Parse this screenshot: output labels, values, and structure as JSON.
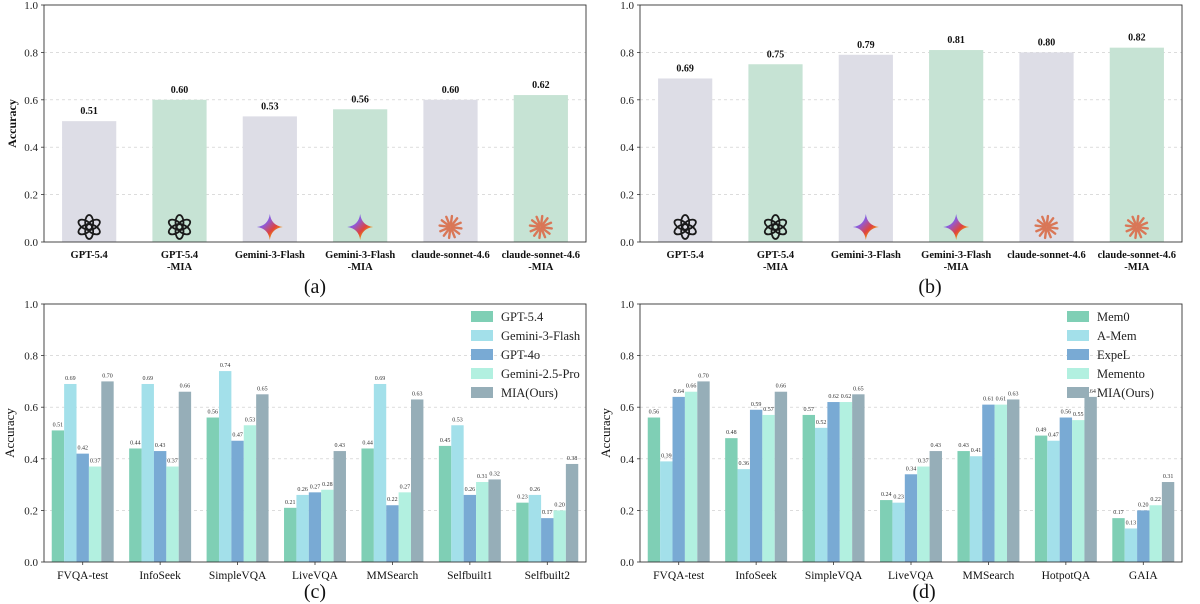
{
  "chart_data": [
    {
      "id": "a",
      "type": "bar",
      "caption": "(a)",
      "ylabel": "Accuracy",
      "ylim": [
        0,
        1.0
      ],
      "yticks": [
        0.0,
        0.2,
        0.4,
        0.6,
        0.8,
        1.0
      ],
      "grid": true,
      "categories": [
        "GPT-5.4",
        "GPT-5.4\n-MIA",
        "Gemini-3-Flash",
        "Gemini-3-Flash\n-MIA",
        "claude-sonnet-4.6",
        "claude-sonnet-4.6\n-MIA"
      ],
      "values": [
        0.51,
        0.6,
        0.53,
        0.56,
        0.6,
        0.62
      ],
      "value_labels": [
        "0.51",
        "0.60",
        "0.53",
        "0.56",
        "0.60",
        "0.62"
      ],
      "bar_colors": [
        "#dddde6",
        "#c6e3d4",
        "#dddde6",
        "#c6e3d4",
        "#dddde6",
        "#c6e3d4"
      ],
      "icons": [
        "openai-icon",
        "openai-icon",
        "gemini-icon",
        "gemini-icon",
        "claude-icon",
        "claude-icon"
      ]
    },
    {
      "id": "b",
      "type": "bar",
      "caption": "(b)",
      "ylabel": "",
      "ylim": [
        0,
        1.0
      ],
      "yticks": [
        0.0,
        0.2,
        0.4,
        0.6,
        0.8,
        1.0
      ],
      "grid": true,
      "categories": [
        "GPT-5.4",
        "GPT-5.4\n-MIA",
        "Gemini-3-Flash",
        "Gemini-3-Flash\n-MIA",
        "claude-sonnet-4.6",
        "claude-sonnet-4.6\n-MIA"
      ],
      "values": [
        0.69,
        0.75,
        0.79,
        0.81,
        0.8,
        0.82
      ],
      "value_labels": [
        "0.69",
        "0.75",
        "0.79",
        "0.81",
        "0.80",
        "0.82"
      ],
      "bar_colors": [
        "#dddde6",
        "#c6e3d4",
        "#dddde6",
        "#c6e3d4",
        "#dddde6",
        "#c6e3d4"
      ],
      "icons": [
        "openai-icon",
        "openai-icon",
        "gemini-icon",
        "gemini-icon",
        "claude-icon",
        "claude-icon"
      ]
    },
    {
      "id": "c",
      "type": "bar",
      "caption": "(c)",
      "ylabel": "Accuracy",
      "ylim": [
        0,
        1.0
      ],
      "yticks": [
        0.0,
        0.2,
        0.4,
        0.6,
        0.8,
        1.0
      ],
      "grid": true,
      "legend": "top-right",
      "categories": [
        "FVQA-test",
        "InfoSeek",
        "SimpleVQA",
        "LiveVQA",
        "MMSearch",
        "Selfbuilt1",
        "Selfbuilt2"
      ],
      "series": [
        {
          "name": "GPT-5.4",
          "color": "#7fcfb5",
          "values": [
            0.51,
            0.44,
            0.56,
            0.21,
            0.44,
            0.45,
            0.23
          ]
        },
        {
          "name": "Gemini-3-Flash",
          "color": "#a3e0ea",
          "values": [
            0.69,
            0.69,
            0.74,
            0.26,
            0.69,
            0.53,
            0.26
          ]
        },
        {
          "name": "GPT-4o",
          "color": "#79aad4",
          "values": [
            0.42,
            0.43,
            0.47,
            0.27,
            0.22,
            0.26,
            0.17
          ]
        },
        {
          "name": "Gemini-2.5-Pro",
          "color": "#b2f0e0",
          "values": [
            0.37,
            0.37,
            0.53,
            0.28,
            0.27,
            0.31,
            0.2
          ]
        },
        {
          "name": "MIA(Ours)",
          "color": "#96aeb8",
          "values": [
            0.7,
            0.66,
            0.65,
            0.43,
            0.63,
            0.32,
            0.38
          ]
        }
      ]
    },
    {
      "id": "d",
      "type": "bar",
      "caption": "(d)",
      "ylabel": "Accuracy",
      "ylim": [
        0,
        1.0
      ],
      "yticks": [
        0.0,
        0.2,
        0.4,
        0.6,
        0.8,
        1.0
      ],
      "grid": true,
      "legend": "top-right",
      "categories": [
        "FVQA-test",
        "InfoSeek",
        "SimpleVQA",
        "LiveVQA",
        "MMSearch",
        "HotpotQA",
        "GAIA"
      ],
      "series": [
        {
          "name": "Mem0",
          "color": "#7fcfb5",
          "values": [
            0.56,
            0.48,
            0.57,
            0.24,
            0.43,
            0.49,
            0.17
          ]
        },
        {
          "name": "A-Mem",
          "color": "#a3e0ea",
          "values": [
            0.39,
            0.36,
            0.52,
            0.23,
            0.41,
            0.47,
            0.13
          ]
        },
        {
          "name": "ExpeL",
          "color": "#79aad4",
          "values": [
            0.64,
            0.59,
            0.62,
            0.34,
            0.61,
            0.56,
            0.2
          ]
        },
        {
          "name": "Memento",
          "color": "#b2f0e0",
          "values": [
            0.66,
            0.57,
            0.62,
            0.37,
            0.61,
            0.55,
            0.22
          ]
        },
        {
          "name": "MIA(Ours)",
          "color": "#96aeb8",
          "values": [
            0.7,
            0.66,
            0.65,
            0.43,
            0.63,
            0.64,
            0.31
          ]
        }
      ]
    }
  ]
}
